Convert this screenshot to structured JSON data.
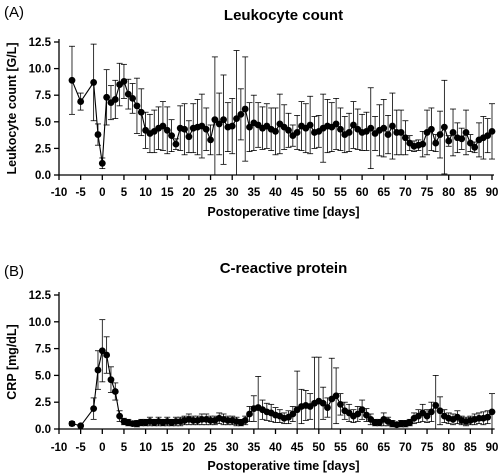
{
  "chart_data": [
    {
      "type": "scatter",
      "panel_label": "(A)",
      "title": "Leukocyte count",
      "xlabel": "Postoperative time [days]",
      "ylabel": "Leukocyte count [G/L]",
      "xlim": [
        -10,
        90
      ],
      "ylim": [
        0,
        12.5
      ],
      "xticks": [
        "-10",
        "-5",
        "0",
        "5",
        "10",
        "15",
        "20",
        "25",
        "30",
        "35",
        "40",
        "45",
        "50",
        "55",
        "60",
        "65",
        "70",
        "75",
        "80",
        "85",
        "90"
      ],
      "yticks": [
        "0.0",
        "2.5",
        "5.0",
        "7.5",
        "10.0",
        "12.5"
      ],
      "connected": true,
      "series": [
        {
          "x": [
            -7,
            -5,
            -2,
            -1,
            0,
            1,
            2,
            3,
            4,
            5,
            6,
            7,
            8,
            9,
            10,
            11,
            12,
            13,
            14,
            15,
            16,
            17,
            18,
            19,
            20,
            21,
            22,
            23,
            24,
            25,
            26,
            27,
            28,
            29,
            30,
            31,
            32,
            33,
            34,
            35,
            36,
            37,
            38,
            39,
            40,
            41,
            42,
            43,
            44,
            45,
            46,
            47,
            48,
            49,
            50,
            51,
            52,
            53,
            54,
            55,
            56,
            57,
            58,
            59,
            60,
            61,
            62,
            63,
            64,
            65,
            66,
            67,
            68,
            69,
            70,
            71,
            72,
            73,
            74,
            75,
            76,
            77,
            78,
            79,
            80,
            81,
            82,
            83,
            84,
            85,
            86,
            87,
            88,
            89,
            90
          ],
          "y": [
            8.9,
            6.9,
            8.7,
            3.8,
            1.1,
            7.3,
            6.8,
            7.1,
            8.5,
            8.8,
            7.6,
            7.2,
            6.5,
            5.9,
            4.2,
            3.9,
            4.1,
            4.4,
            4.6,
            4.2,
            3.7,
            2.9,
            4.4,
            4.3,
            3.6,
            4.4,
            4.5,
            4.6,
            4.3,
            3.3,
            5.2,
            4.8,
            5.2,
            4.5,
            4.6,
            5.3,
            5.7,
            6.2,
            4.5,
            4.9,
            4.7,
            4.4,
            4.6,
            4.3,
            4.1,
            4.8,
            4.5,
            4.2,
            3.7,
            4.0,
            4.6,
            4.4,
            4.7,
            4.0,
            4.1,
            4.4,
            4.6,
            4.5,
            4.8,
            4.3,
            3.8,
            4.0,
            4.7,
            4.3,
            4.0,
            4.1,
            4.4,
            3.9,
            4.2,
            4.4,
            3.8,
            4.6,
            4.0,
            4.0,
            3.5,
            3.0,
            2.7,
            2.8,
            2.9,
            4.0,
            4.3,
            3.0,
            3.8,
            4.5,
            3.2,
            4.0,
            3.5,
            3.4,
            4.0,
            3.0,
            2.6,
            3.3,
            3.5,
            3.7,
            4.1
          ],
          "error": [
            3.2,
            0.8,
            3.6,
            1.0,
            0.5,
            2.6,
            1.6,
            1.8,
            2.0,
            1.6,
            1.4,
            1.4,
            2.6,
            2.2,
            1.7,
            1.8,
            2.0,
            2.0,
            2.3,
            2.2,
            1.5,
            0.5,
            2.1,
            2.4,
            1.5,
            2.3,
            2.6,
            3.0,
            2.0,
            1.4,
            5.9,
            2.9,
            4.2,
            2.3,
            2.6,
            6.4,
            2.4,
            4.9,
            2.3,
            2.6,
            2.1,
            2.0,
            2.1,
            2.0,
            2.2,
            2.8,
            2.1,
            1.6,
            1.0,
            1.6,
            2.3,
            2.3,
            2.7,
            1.5,
            1.5,
            3.2,
            2.5,
            2.3,
            2.4,
            2.0,
            1.7,
            1.8,
            2.2,
            1.9,
            1.7,
            1.8,
            3.8,
            1.6,
            2.4,
            2.7,
            1.8,
            3.1,
            2.1,
            2.1,
            1.6,
            0.7,
            0.5,
            0.5,
            1.2,
            2.1,
            2.0,
            0.8,
            2.2,
            4.4,
            0.5,
            2.2,
            1.4,
            1.0,
            2.1,
            0.8,
            0.5,
            1.6,
            2.0,
            1.6,
            2.6
          ]
        }
      ]
    },
    {
      "type": "scatter",
      "panel_label": "(B)",
      "title": "C-reactive protein",
      "xlabel": "Postoperative time [days]",
      "ylabel": "CRP [mg/dL]",
      "xlim": [
        -10,
        90
      ],
      "ylim": [
        0,
        12.5
      ],
      "xticks": [
        "-10",
        "-5",
        "0",
        "5",
        "10",
        "15",
        "20",
        "25",
        "30",
        "35",
        "40",
        "45",
        "50",
        "55",
        "60",
        "65",
        "70",
        "75",
        "80",
        "85",
        "90"
      ],
      "yticks": [
        "0.0",
        "2.5",
        "5.0",
        "7.5",
        "10.0",
        "12.5"
      ],
      "connected": true,
      "series": [
        {
          "x": [
            -7,
            -5,
            -2,
            -1,
            0,
            1,
            2,
            3,
            4,
            5,
            6,
            7,
            8,
            9,
            10,
            11,
            12,
            13,
            14,
            15,
            16,
            17,
            18,
            19,
            20,
            21,
            22,
            23,
            24,
            25,
            26,
            27,
            28,
            29,
            30,
            31,
            32,
            33,
            34,
            35,
            36,
            37,
            38,
            39,
            40,
            41,
            42,
            43,
            44,
            45,
            46,
            47,
            48,
            49,
            50,
            51,
            52,
            53,
            54,
            55,
            56,
            57,
            58,
            59,
            60,
            61,
            62,
            63,
            64,
            65,
            66,
            67,
            68,
            69,
            70,
            71,
            72,
            73,
            74,
            75,
            76,
            77,
            78,
            79,
            80,
            81,
            82,
            83,
            84,
            85,
            86,
            87,
            88,
            89,
            90
          ],
          "y": [
            0.5,
            0.3,
            1.9,
            5.5,
            7.3,
            6.9,
            4.6,
            3.5,
            1.2,
            0.7,
            0.6,
            0.5,
            0.5,
            0.6,
            0.6,
            0.7,
            0.6,
            0.7,
            0.6,
            0.7,
            0.6,
            0.7,
            0.7,
            0.8,
            0.9,
            0.8,
            0.8,
            0.9,
            0.9,
            0.8,
            0.8,
            1.0,
            0.9,
            0.8,
            0.8,
            0.7,
            0.6,
            0.8,
            1.4,
            1.9,
            2.0,
            1.8,
            1.6,
            1.5,
            1.3,
            1.2,
            1.0,
            1.1,
            1.4,
            1.8,
            2.1,
            2.2,
            2.1,
            2.4,
            2.6,
            2.4,
            2.0,
            2.8,
            3.1,
            2.3,
            1.7,
            1.5,
            1.2,
            1.4,
            1.8,
            1.3,
            0.9,
            0.6,
            0.6,
            0.9,
            0.7,
            0.5,
            0.4,
            0.5,
            0.5,
            0.6,
            1.0,
            1.2,
            1.5,
            1.2,
            1.6,
            2.2,
            1.7,
            1.2,
            1.0,
            0.9,
            1.1,
            0.8,
            0.7,
            0.8,
            0.9,
            1.0,
            1.0,
            1.1,
            1.6
          ],
          "error": [
            0.2,
            0.1,
            1.0,
            1.8,
            2.9,
            1.7,
            1.2,
            0.8,
            0.5,
            0.3,
            0.3,
            0.2,
            0.3,
            0.3,
            0.3,
            0.4,
            0.3,
            0.4,
            0.3,
            0.4,
            0.3,
            0.4,
            0.4,
            0.4,
            0.5,
            0.4,
            0.4,
            0.5,
            0.5,
            0.4,
            0.4,
            0.5,
            0.5,
            0.4,
            0.4,
            0.4,
            0.3,
            0.4,
            0.7,
            1.2,
            2.9,
            0.9,
            0.8,
            0.8,
            0.7,
            0.6,
            0.5,
            0.6,
            0.7,
            3.6,
            1.6,
            1.4,
            1.2,
            4.3,
            4.1,
            1.5,
            0.9,
            3.8,
            2.6,
            1.0,
            0.8,
            0.8,
            0.6,
            0.7,
            0.9,
            0.6,
            0.5,
            0.3,
            0.3,
            0.6,
            0.4,
            0.3,
            0.2,
            0.3,
            0.3,
            0.3,
            0.5,
            0.6,
            0.8,
            0.6,
            0.9,
            2.8,
            1.3,
            0.6,
            0.5,
            0.5,
            0.6,
            0.4,
            0.4,
            0.4,
            0.5,
            0.5,
            0.6,
            0.6,
            1.7
          ]
        }
      ]
    }
  ]
}
